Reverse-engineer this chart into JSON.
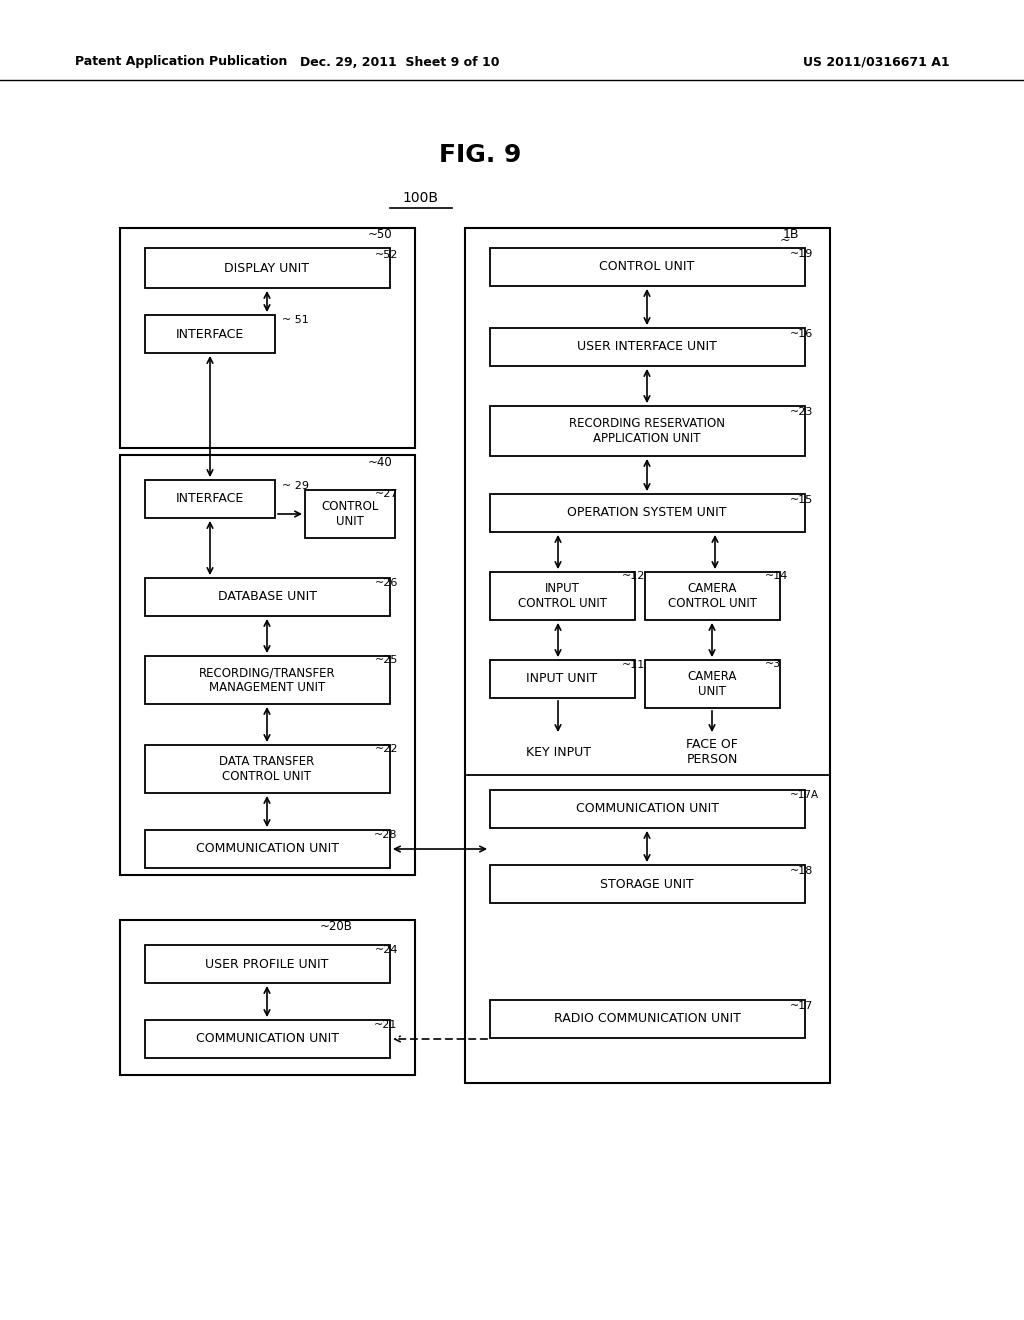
{
  "bg_color": "#ffffff",
  "header_left": "Patent Application Publication",
  "header_mid": "Dec. 29, 2011  Sheet 9 of 10",
  "header_right": "US 2011/0316671 A1",
  "fig_label": "FIG. 9",
  "system_label": "100B"
}
